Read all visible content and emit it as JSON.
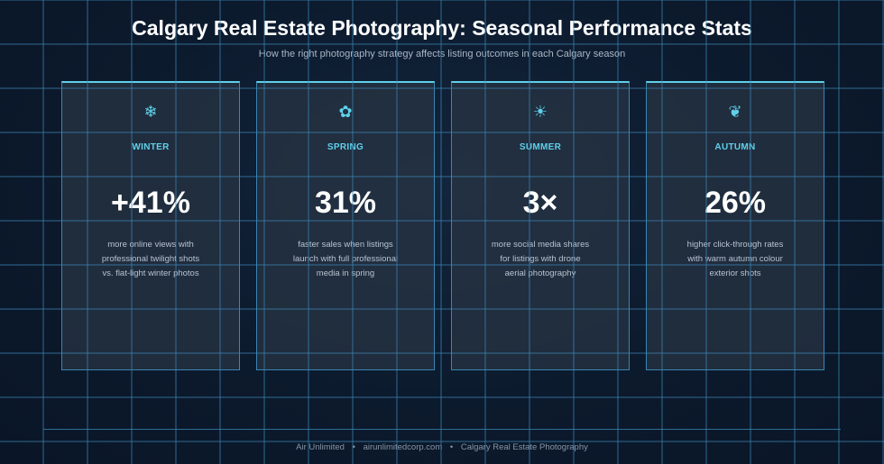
{
  "header": {
    "title": "Calgary Real Estate Photography: Seasonal Performance Stats",
    "subtitle": "How the right photography strategy affects listing outcomes in each Calgary season"
  },
  "cards": [
    {
      "icon": "snowflake-icon",
      "icon_glyph": "❄",
      "season": "WINTER",
      "stat": "+41%",
      "desc_lines": [
        "more online views with",
        "professional twilight shots",
        "vs. flat-light winter photos"
      ]
    },
    {
      "icon": "flower-icon",
      "icon_glyph": "✿",
      "season": "SPRING",
      "stat": "31%",
      "desc_lines": [
        "faster sales when listings",
        "launch with full professional",
        "media in spring"
      ]
    },
    {
      "icon": "sun-icon",
      "icon_glyph": "☀",
      "season": "SUMMER",
      "stat": "3×",
      "desc_lines": [
        "more social media shares",
        "for listings with drone",
        "aerial photography"
      ]
    },
    {
      "icon": "leaf-icon",
      "icon_glyph": "❦",
      "season": "AUTUMN",
      "stat": "26%",
      "desc_lines": [
        "higher click-through rates",
        "with warm autumn colour",
        "exterior shots"
      ]
    }
  ],
  "footer": {
    "brand": "Air Unlimited",
    "site": "airunlimitedcorp.com",
    "tagline": "Calgary Real Estate Photography",
    "separator": "•"
  },
  "colors": {
    "accent": "#5fd0ea",
    "background": "#0c1a2d",
    "grid": "#3a86b3"
  }
}
